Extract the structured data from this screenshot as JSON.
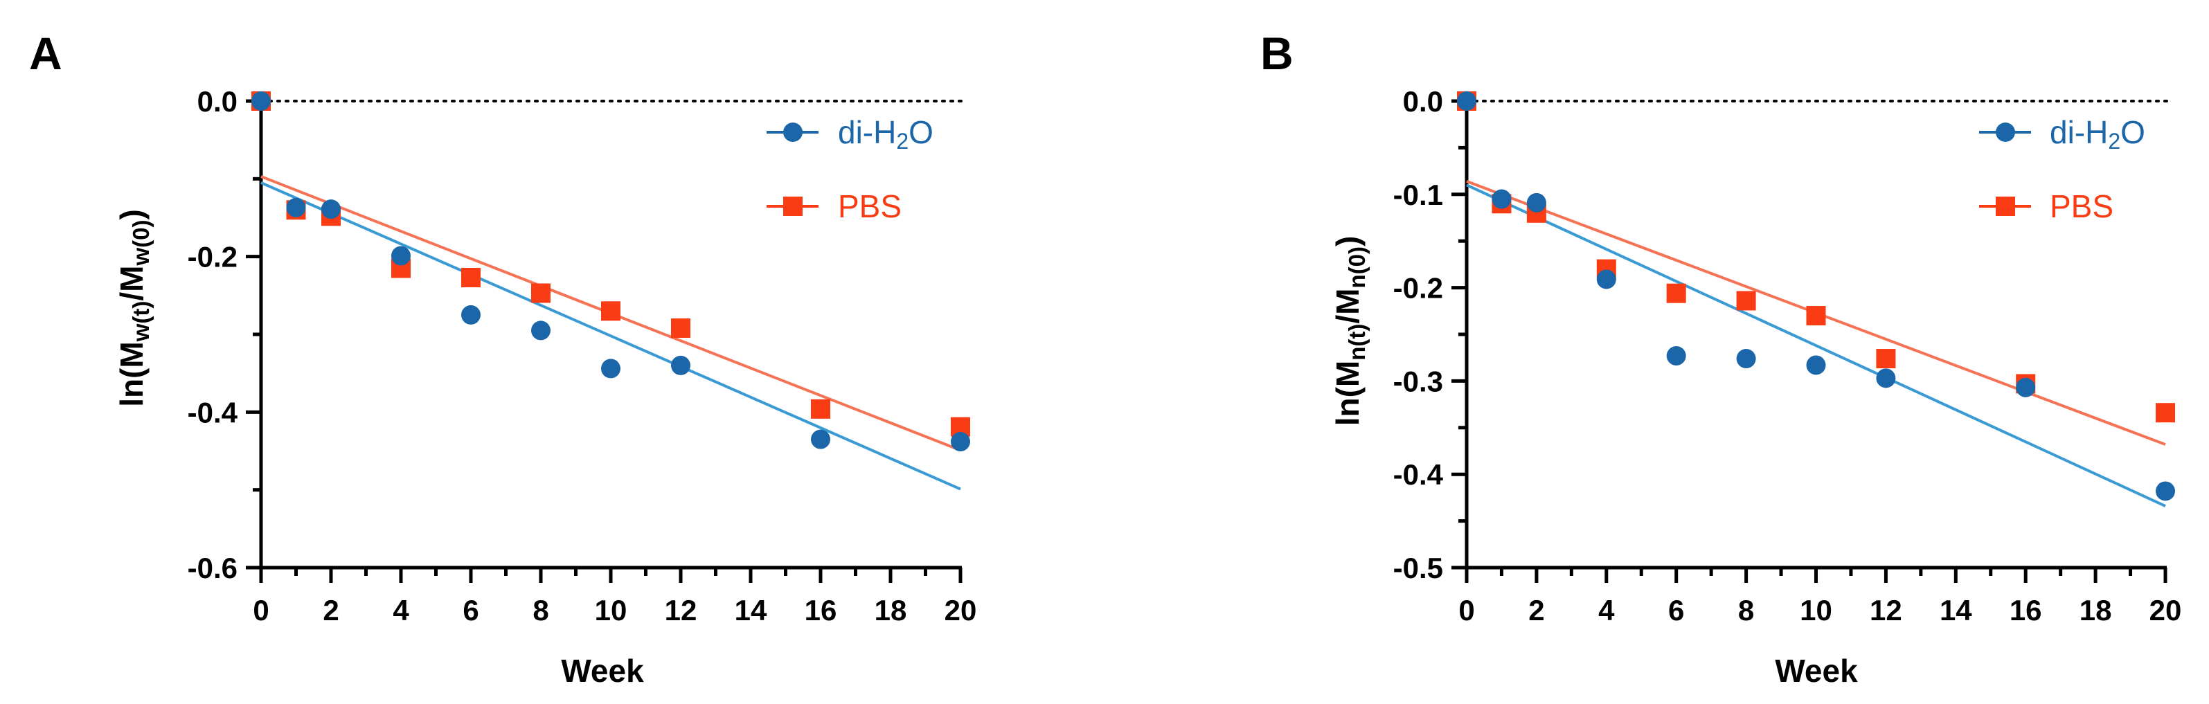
{
  "colors": {
    "di_h2o": "#1a66a8",
    "pbs": "#fa3c14",
    "fit_di_h2o": "#3a9ad4",
    "fit_pbs": "#f57255"
  },
  "legend": {
    "di_h2o_prefix": "di-H",
    "di_h2o_sub": "2",
    "di_h2o_suffix": "O",
    "pbs": "PBS"
  },
  "chart_data": [
    {
      "type": "scatter",
      "panel_label": "A",
      "xlabel": "Week",
      "ylabel": {
        "prefix": "ln(M",
        "sub1": "w(t)",
        "mid": "/M",
        "sub2": "w(0)",
        "suffix": ")"
      },
      "xlim": [
        0,
        20
      ],
      "ylim": [
        -0.6,
        0.0
      ],
      "xticks": [
        0,
        2,
        4,
        6,
        8,
        10,
        12,
        14,
        16,
        18,
        20
      ],
      "yticks_major": [
        0.0,
        -0.2,
        -0.4,
        -0.6
      ],
      "ytick_labels": [
        "0.0",
        "-0.2",
        "-0.4",
        "-0.6"
      ],
      "yticks_minor": [
        -0.1,
        -0.3,
        -0.5
      ],
      "zero_line": "dotted",
      "series": [
        {
          "name": "di-H2O",
          "marker": "circle",
          "x": [
            0,
            1,
            2,
            4,
            6,
            8,
            10,
            12,
            16,
            20
          ],
          "y": [
            0.0,
            -0.137,
            -0.139,
            -0.199,
            -0.275,
            -0.295,
            -0.344,
            -0.34,
            -0.435,
            -0.438
          ],
          "fit": {
            "intercept": -0.105,
            "slope": -0.0197
          }
        },
        {
          "name": "PBS",
          "marker": "square",
          "x": [
            0,
            1,
            2,
            4,
            6,
            8,
            10,
            12,
            16,
            20
          ],
          "y": [
            0.0,
            -0.14,
            -0.148,
            -0.215,
            -0.227,
            -0.247,
            -0.27,
            -0.292,
            -0.396,
            -0.419
          ],
          "fit": {
            "intercept": -0.097,
            "slope": -0.0176
          }
        }
      ]
    },
    {
      "type": "scatter",
      "panel_label": "B",
      "xlabel": "Week",
      "ylabel": {
        "prefix": "ln(M",
        "sub1": "n(t)",
        "mid": "/M",
        "sub2": "n(0)",
        "suffix": ")"
      },
      "xlim": [
        0,
        20
      ],
      "ylim": [
        -0.5,
        0.0
      ],
      "xticks": [
        0,
        2,
        4,
        6,
        8,
        10,
        12,
        14,
        16,
        18,
        20
      ],
      "yticks_major": [
        0.0,
        -0.1,
        -0.2,
        -0.3,
        -0.4,
        -0.5
      ],
      "ytick_labels": [
        "0.0",
        "-0.1",
        "-0.2",
        "-0.3",
        "-0.4",
        "-0.5"
      ],
      "yticks_minor": [
        -0.05,
        -0.15,
        -0.25,
        -0.35,
        -0.45
      ],
      "zero_line": "dotted",
      "series": [
        {
          "name": "di-H2O",
          "marker": "circle",
          "x": [
            0,
            1,
            2,
            4,
            6,
            8,
            10,
            12,
            16,
            20
          ],
          "y": [
            0.0,
            -0.105,
            -0.109,
            -0.191,
            -0.273,
            -0.276,
            -0.283,
            -0.297,
            -0.307,
            -0.418
          ],
          "fit": {
            "intercept": -0.09,
            "slope": -0.0172
          }
        },
        {
          "name": "PBS",
          "marker": "square",
          "x": [
            0,
            1,
            2,
            4,
            6,
            8,
            10,
            12,
            16,
            20
          ],
          "y": [
            0.0,
            -0.11,
            -0.12,
            -0.18,
            -0.206,
            -0.214,
            -0.23,
            -0.276,
            -0.303,
            -0.334
          ],
          "fit": {
            "intercept": -0.086,
            "slope": -0.0141
          }
        }
      ]
    }
  ]
}
